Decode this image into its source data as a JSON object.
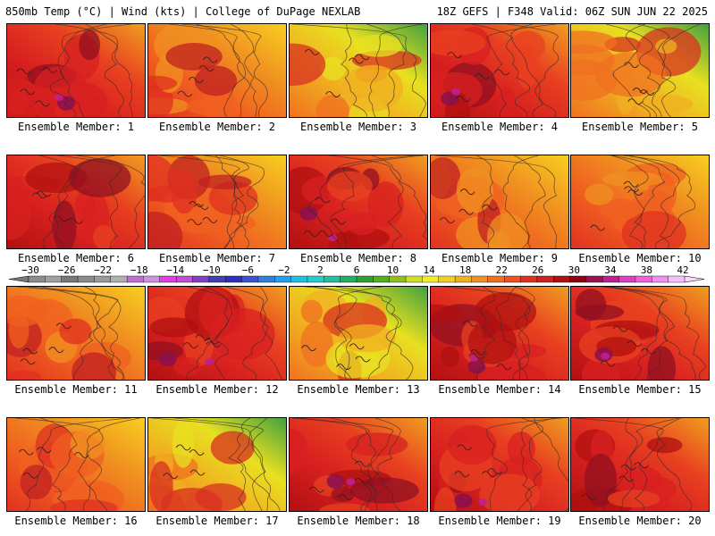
{
  "header": {
    "left": "850mb Temp (°C) | Wind (kts) | College of DuPage NEXLAB",
    "right": "18Z GEFS | F348 Valid: 06Z SUN JUN 22 2025"
  },
  "panels": [
    {
      "label": "Ensemble Member: 1",
      "scheme": "hot"
    },
    {
      "label": "Ensemble Member: 2",
      "scheme": "warm"
    },
    {
      "label": "Ensemble Member: 3",
      "scheme": "cool"
    },
    {
      "label": "Ensemble Member: 4",
      "scheme": "hot"
    },
    {
      "label": "Ensemble Member: 5",
      "scheme": "cool"
    },
    {
      "label": "Ensemble Member: 6",
      "scheme": "hot"
    },
    {
      "label": "Ensemble Member: 7",
      "scheme": "warm"
    },
    {
      "label": "Ensemble Member: 8",
      "scheme": "hot"
    },
    {
      "label": "Ensemble Member: 9",
      "scheme": "warm"
    },
    {
      "label": "Ensemble Member: 10",
      "scheme": "warm"
    },
    {
      "label": "Ensemble Member: 11",
      "scheme": "warm"
    },
    {
      "label": "Ensemble Member: 12",
      "scheme": "hot"
    },
    {
      "label": "Ensemble Member: 13",
      "scheme": "cool"
    },
    {
      "label": "Ensemble Member: 14",
      "scheme": "hot"
    },
    {
      "label": "Ensemble Member: 15",
      "scheme": "hot"
    },
    {
      "label": "Ensemble Member: 16",
      "scheme": "warm"
    },
    {
      "label": "Ensemble Member: 17",
      "scheme": "cool"
    },
    {
      "label": "Ensemble Member: 18",
      "scheme": "hot"
    },
    {
      "label": "Ensemble Member: 19",
      "scheme": "hot"
    },
    {
      "label": "Ensemble Member: 20",
      "scheme": "hot"
    }
  ],
  "colorbar": {
    "labels": [
      "−30",
      "−26",
      "−22",
      "−18",
      "−14",
      "−10",
      "−6",
      "−2",
      "2",
      "6",
      "10",
      "14",
      "18",
      "22",
      "26",
      "30",
      "34",
      "38",
      "42"
    ],
    "colors": [
      "#8c8c8c",
      "#a0a0a0",
      "#787878",
      "#8a8a8a",
      "#9a9a9a",
      "#b0b0b0",
      "#c070d0",
      "#d090e0",
      "#e040e0",
      "#c050d0",
      "#8040c0",
      "#4040b0",
      "#3030c0",
      "#4050d0",
      "#3080e0",
      "#20a0f0",
      "#20c0e0",
      "#20d0d0",
      "#20c0a0",
      "#20b060",
      "#30a030",
      "#50b020",
      "#90c020",
      "#d0e020",
      "#f0f020",
      "#f0d020",
      "#f0b020",
      "#f09020",
      "#f07020",
      "#f05020",
      "#e03020",
      "#d02020",
      "#b01010",
      "#900010",
      "#a01050",
      "#c02090",
      "#e040c0",
      "#f060e0",
      "#f090f0",
      "#f8c0f8"
    ]
  }
}
